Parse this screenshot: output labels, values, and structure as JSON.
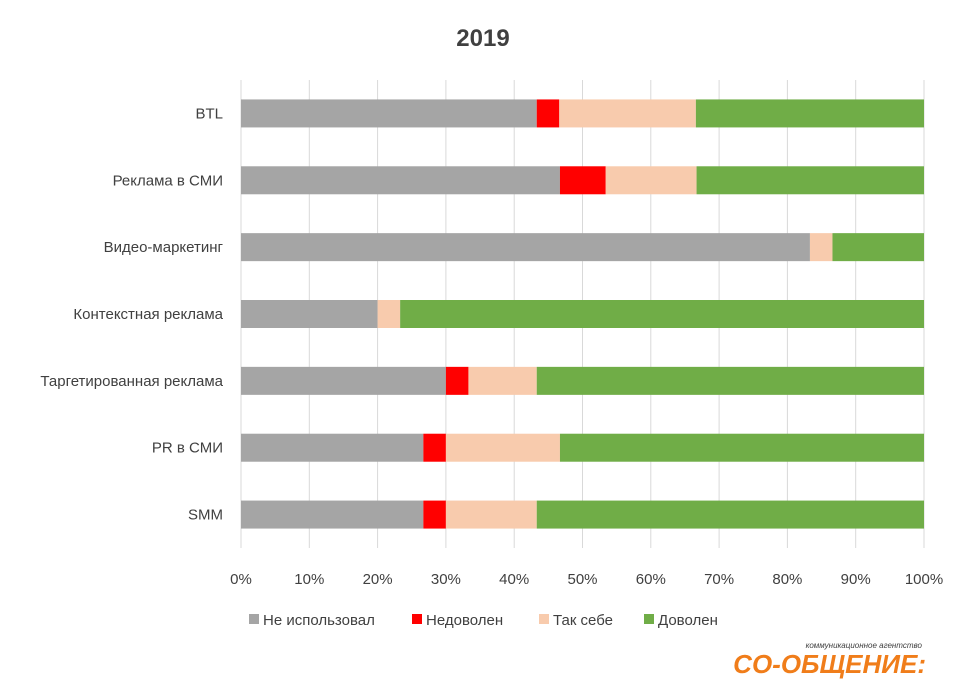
{
  "chart_data": {
    "type": "bar",
    "orientation": "horizontal",
    "stacked": "percent",
    "title": "2019",
    "categories": [
      "BTL",
      "Реклама в СМИ",
      "Видео-маркетинг",
      "Контекстная реклама",
      "Таргетированная реклама",
      "PR в СМИ",
      "SMM"
    ],
    "series": [
      {
        "name": "Не использовал",
        "color": "#a5a5a5",
        "values": [
          43.3,
          46.7,
          83.3,
          20.0,
          30.0,
          26.7,
          26.7
        ]
      },
      {
        "name": "Недоволен",
        "color": "#ff0000",
        "values": [
          3.3,
          6.7,
          0,
          0,
          3.3,
          3.3,
          3.3
        ]
      },
      {
        "name": "Так себе",
        "color": "#f8cbad",
        "values": [
          20.0,
          13.3,
          3.3,
          3.3,
          10.0,
          16.7,
          13.3
        ]
      },
      {
        "name": "Доволен",
        "color": "#70ad47",
        "values": [
          33.4,
          33.3,
          13.4,
          76.7,
          56.7,
          53.3,
          56.7
        ]
      }
    ],
    "xlim": [
      0,
      100
    ],
    "xticks": [
      "0%",
      "10%",
      "20%",
      "30%",
      "40%",
      "50%",
      "60%",
      "70%",
      "80%",
      "90%",
      "100%"
    ],
    "grid": "vertical",
    "legend_position": "bottom"
  },
  "logo": {
    "tagline": "коммуникационное агентство",
    "name": "СО-ОБЩЕНИЕ:"
  }
}
